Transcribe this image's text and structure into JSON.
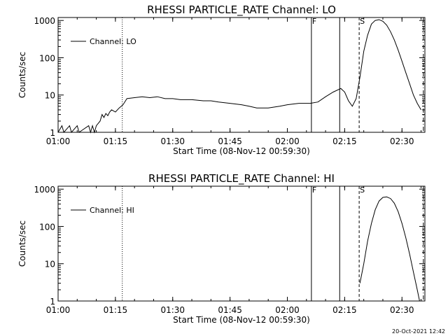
{
  "footer_timestamp": "20-Oct-2021 12:42",
  "chart_data": [
    {
      "type": "line",
      "title": "RHESSI PARTICLE_RATE Channel: LO",
      "xlabel": "Start Time (08-Nov-12 00:59:30)",
      "ylabel": "Counts/sec",
      "yscale": "log",
      "ylim": [
        1,
        1200
      ],
      "xlim": [
        "01:00",
        "02:36"
      ],
      "x_ticks": [
        "01:00",
        "01:15",
        "01:30",
        "01:45",
        "02:00",
        "02:15",
        "02:30"
      ],
      "y_ticks": [
        "1",
        "10",
        "100",
        "1000"
      ],
      "legend": "top-left",
      "series": [
        {
          "name": "Channel: LO",
          "points": [
            [
              "01:00",
              "1"
            ],
            [
              "01:01",
              "1.5"
            ],
            [
              "01:01.5",
              "1"
            ],
            [
              "01:03",
              "1.5"
            ],
            [
              "01:03.5",
              "1"
            ],
            [
              "01:05",
              "1.5"
            ],
            [
              "01:05.5",
              "1"
            ],
            [
              "01:08",
              "1.5"
            ],
            [
              "01:08.5",
              "1"
            ],
            [
              "01:09",
              "1.5"
            ],
            [
              "01:09.5",
              "1"
            ],
            [
              "01:10",
              "1.5"
            ],
            [
              "01:11",
              "2"
            ],
            [
              "01:11.5",
              "3"
            ],
            [
              "01:12",
              "2.5"
            ],
            [
              "01:12.5",
              "3.2"
            ],
            [
              "01:13",
              "2.8"
            ],
            [
              "01:13.5",
              "3.5"
            ],
            [
              "01:14",
              "4"
            ],
            [
              "01:15",
              "3.5"
            ],
            [
              "01:16",
              "4.5"
            ],
            [
              "01:17",
              "5.5"
            ],
            [
              "01:18",
              "8"
            ],
            [
              "01:20",
              "8.5"
            ],
            [
              "01:22",
              "9"
            ],
            [
              "01:24",
              "8.5"
            ],
            [
              "01:26",
              "9"
            ],
            [
              "01:28",
              "8"
            ],
            [
              "01:30",
              "8"
            ],
            [
              "01:32",
              "7.5"
            ],
            [
              "01:35",
              "7.5"
            ],
            [
              "01:38",
              "7"
            ],
            [
              "01:40",
              "7"
            ],
            [
              "01:42",
              "6.5"
            ],
            [
              "01:45",
              "6"
            ],
            [
              "01:48",
              "5.5"
            ],
            [
              "01:50",
              "5"
            ],
            [
              "01:52",
              "4.5"
            ],
            [
              "01:55",
              "4.5"
            ],
            [
              "01:58",
              "5"
            ],
            [
              "02:00",
              "5.5"
            ],
            [
              "02:03",
              "6"
            ],
            [
              "02:06",
              "6"
            ],
            [
              "02:08",
              "6.5"
            ],
            [
              "02:10",
              "9"
            ],
            [
              "02:12",
              "12"
            ],
            [
              "02:14",
              "15"
            ],
            [
              "02:15",
              "12"
            ],
            [
              "02:16",
              "7"
            ],
            [
              "02:17",
              "5"
            ],
            [
              "02:18",
              "8"
            ],
            [
              "02:19",
              "30"
            ],
            [
              "02:20",
              "150"
            ],
            [
              "02:21",
              "400"
            ],
            [
              "02:22",
              "800"
            ],
            [
              "02:23",
              "1000"
            ],
            [
              "02:24",
              "1050"
            ],
            [
              "02:25",
              "950"
            ],
            [
              "02:26",
              "750"
            ],
            [
              "02:27",
              "500"
            ],
            [
              "02:28",
              "300"
            ],
            [
              "02:29",
              "160"
            ],
            [
              "02:30",
              "80"
            ],
            [
              "02:31",
              "40"
            ],
            [
              "02:32",
              "20"
            ],
            [
              "02:33",
              "10"
            ],
            [
              "02:34",
              "6"
            ],
            [
              "02:35",
              "4"
            ]
          ]
        }
      ],
      "markers": [
        {
          "label": "F",
          "at": "02:06.3",
          "style": "solid"
        },
        {
          "label": "",
          "at": "02:13.7",
          "style": "solid"
        },
        {
          "label": "S",
          "at": "02:18.8",
          "style": "dashed"
        },
        {
          "label": "",
          "at": "01:16.8",
          "style": "dotted"
        },
        {
          "label": "",
          "at": "02:35.6",
          "style": "dash-dot"
        }
      ]
    },
    {
      "type": "line",
      "title": "RHESSI PARTICLE_RATE Channel: HI",
      "xlabel": "Start Time (08-Nov-12 00:59:30)",
      "ylabel": "Counts/sec",
      "yscale": "log",
      "ylim": [
        1,
        1200
      ],
      "xlim": [
        "01:00",
        "02:36"
      ],
      "x_ticks": [
        "01:00",
        "01:15",
        "01:30",
        "01:45",
        "02:00",
        "02:15",
        "02:30"
      ],
      "y_ticks": [
        "1",
        "10",
        "100",
        "1000"
      ],
      "legend": "top-left",
      "series": [
        {
          "name": "Channel: HI",
          "points": [
            [
              "02:19",
              "3"
            ],
            [
              "02:20",
              "10"
            ],
            [
              "02:21",
              "40"
            ],
            [
              "02:22",
              "120"
            ],
            [
              "02:23",
              "280"
            ],
            [
              "02:24",
              "480"
            ],
            [
              "02:25",
              "600"
            ],
            [
              "02:26",
              "620"
            ],
            [
              "02:27",
              "560"
            ],
            [
              "02:28",
              "420"
            ],
            [
              "02:29",
              "250"
            ],
            [
              "02:30",
              "120"
            ],
            [
              "02:31",
              "50"
            ],
            [
              "02:32",
              "18"
            ],
            [
              "02:33",
              "6"
            ],
            [
              "02:34",
              "2"
            ],
            [
              "02:34.6",
              "1"
            ]
          ]
        }
      ],
      "markers": [
        {
          "label": "F",
          "at": "02:06.3",
          "style": "solid"
        },
        {
          "label": "",
          "at": "02:13.7",
          "style": "solid"
        },
        {
          "label": "S",
          "at": "02:18.8",
          "style": "dashed"
        },
        {
          "label": "",
          "at": "01:16.8",
          "style": "dotted"
        },
        {
          "label": "",
          "at": "02:35.6",
          "style": "dash-dot"
        }
      ]
    }
  ]
}
